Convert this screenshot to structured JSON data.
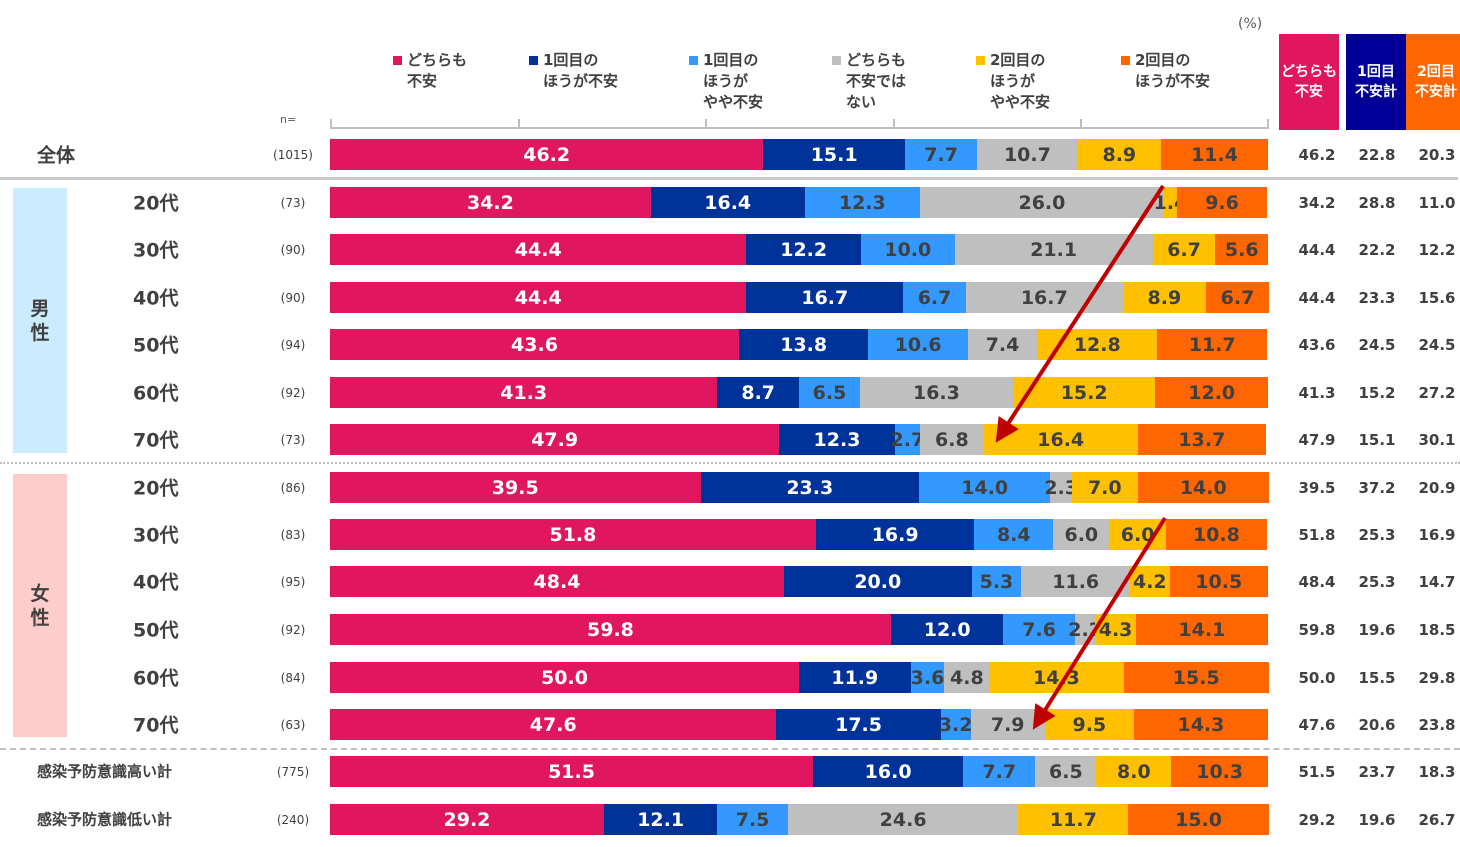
{
  "chart_data": {
    "type": "bar",
    "orientation": "horizontal-stacked-100",
    "unit_label": "(%)",
    "n_header": "n=",
    "series": [
      {
        "key": "both",
        "name": "どちらも\n不安",
        "color": "#E0175E",
        "text_color": "#ffffff"
      },
      {
        "key": "first",
        "name": "1回目の\nほうが不安",
        "color": "#003399",
        "text_color": "#ffffff"
      },
      {
        "key": "first_some",
        "name": "1回目の\nほうが\nやや不安",
        "color": "#3399FF",
        "text_color": "#404040"
      },
      {
        "key": "neither",
        "name": "どちらも\n不安では\nない",
        "color": "#BFBFBF",
        "text_color": "#404040"
      },
      {
        "key": "second_some",
        "name": "2回目の\nほうが\nやや不安",
        "color": "#FFC000",
        "text_color": "#404040"
      },
      {
        "key": "second",
        "name": "2回目の\nほうが不安",
        "color": "#FF6600",
        "text_color": "#404040"
      }
    ],
    "summary_headers": [
      {
        "label": "どちらも\n不安",
        "color": "#E0175E"
      },
      {
        "label": "1回目\n不安計",
        "color": "#000099"
      },
      {
        "label": "2回目\n不安計",
        "color": "#FF6600"
      }
    ],
    "groups": [
      {
        "name": "男性",
        "color": "#CCEBFF"
      },
      {
        "name": "女性",
        "color": "#FFCCCC"
      }
    ],
    "rows": [
      {
        "label": "全体",
        "group": null,
        "n": "(1015)",
        "values": [
          46.2,
          15.1,
          7.7,
          10.7,
          8.9,
          11.4
        ],
        "summary": [
          46.2,
          22.8,
          20.3
        ]
      },
      {
        "label": "20代",
        "group": "男性",
        "n": "(73)",
        "values": [
          34.2,
          16.4,
          12.3,
          26.0,
          1.4,
          9.6
        ],
        "summary": [
          34.2,
          28.8,
          11.0
        ]
      },
      {
        "label": "30代",
        "group": "男性",
        "n": "(90)",
        "values": [
          44.4,
          12.2,
          10.0,
          21.1,
          6.7,
          5.6
        ],
        "summary": [
          44.4,
          22.2,
          12.2
        ]
      },
      {
        "label": "40代",
        "group": "男性",
        "n": "(90)",
        "values": [
          44.4,
          16.7,
          6.7,
          16.7,
          8.9,
          6.7
        ],
        "summary": [
          44.4,
          23.3,
          15.6
        ]
      },
      {
        "label": "50代",
        "group": "男性",
        "n": "(94)",
        "values": [
          43.6,
          13.8,
          10.6,
          7.4,
          12.8,
          11.7
        ],
        "summary": [
          43.6,
          24.5,
          24.5
        ]
      },
      {
        "label": "60代",
        "group": "男性",
        "n": "(92)",
        "values": [
          41.3,
          8.7,
          6.5,
          16.3,
          15.2,
          12.0
        ],
        "summary": [
          41.3,
          15.2,
          27.2
        ]
      },
      {
        "label": "70代",
        "group": "男性",
        "n": "(73)",
        "values": [
          47.9,
          12.3,
          2.7,
          6.8,
          16.4,
          13.7
        ],
        "summary": [
          47.9,
          15.1,
          30.1
        ]
      },
      {
        "label": "20代",
        "group": "女性",
        "n": "(86)",
        "values": [
          39.5,
          23.3,
          14.0,
          2.3,
          7.0,
          14.0
        ],
        "summary": [
          39.5,
          37.2,
          20.9
        ]
      },
      {
        "label": "30代",
        "group": "女性",
        "n": "(83)",
        "values": [
          51.8,
          16.9,
          8.4,
          6.0,
          6.0,
          10.8
        ],
        "summary": [
          51.8,
          25.3,
          16.9
        ]
      },
      {
        "label": "40代",
        "group": "女性",
        "n": "(95)",
        "values": [
          48.4,
          20.0,
          5.3,
          11.6,
          4.2,
          10.5
        ],
        "summary": [
          48.4,
          25.3,
          14.7
        ]
      },
      {
        "label": "50代",
        "group": "女性",
        "n": "(92)",
        "values": [
          59.8,
          12.0,
          7.6,
          2.2,
          4.3,
          14.1
        ],
        "summary": [
          59.8,
          19.6,
          18.5
        ]
      },
      {
        "label": "60代",
        "group": "女性",
        "n": "(84)",
        "values": [
          50.0,
          11.9,
          3.6,
          4.8,
          14.3,
          15.5
        ],
        "summary": [
          50.0,
          15.5,
          29.8
        ]
      },
      {
        "label": "70代",
        "group": "女性",
        "n": "(63)",
        "values": [
          47.6,
          17.5,
          3.2,
          7.9,
          9.5,
          14.3
        ],
        "summary": [
          47.6,
          20.6,
          23.8
        ]
      },
      {
        "label": "感染予防意識高い計",
        "group": null,
        "n": "(775)",
        "values": [
          51.5,
          16.0,
          7.7,
          6.5,
          8.0,
          10.3
        ],
        "summary": [
          51.5,
          23.7,
          18.3
        ]
      },
      {
        "label": "感染予防意識低い計",
        "group": null,
        "n": "(240)",
        "values": [
          29.2,
          12.1,
          7.5,
          24.6,
          11.7,
          15.0
        ],
        "summary": [
          29.2,
          19.6,
          26.7
        ]
      }
    ],
    "annotations": [
      {
        "type": "arrow",
        "color": "#C00000",
        "from": {
          "row": "男性20代",
          "segment": "2回目のほうがやや不安"
        },
        "to": {
          "row": "男性70代",
          "segment": "2回目のほうがやや不安"
        }
      },
      {
        "type": "arrow",
        "color": "#C00000",
        "from": {
          "row": "女性30代",
          "segment": "2回目のほうがやや不安"
        },
        "to": {
          "row": "女性70代",
          "segment": "どちらも不安ではない"
        }
      }
    ],
    "xlim": [
      0,
      100
    ],
    "grid": false,
    "legend_position": "top"
  }
}
